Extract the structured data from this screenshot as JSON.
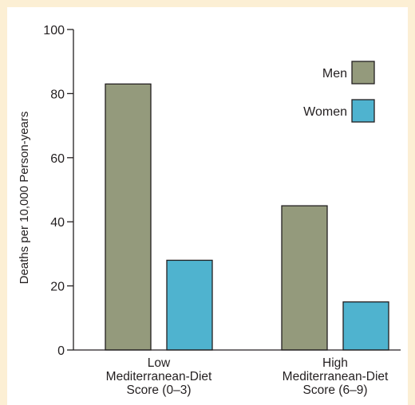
{
  "chart_data": {
    "type": "bar",
    "categories": [
      [
        "Low",
        "Mediterranean-Diet",
        "Score (0–3)"
      ],
      [
        "High",
        "Mediterranean-Diet",
        "Score (6–9)"
      ]
    ],
    "series": [
      {
        "name": "Men",
        "values": [
          83,
          45
        ],
        "color": "#949a7c"
      },
      {
        "name": "Women",
        "values": [
          28,
          15
        ],
        "color": "#4fb3cf"
      }
    ],
    "ylabel": "Deaths per 10,000 Person-years",
    "ylim": [
      0,
      100
    ],
    "yticks": [
      0,
      20,
      40,
      60,
      80,
      100
    ],
    "grid": false,
    "legend_position": "top-right"
  },
  "colors": {
    "page_background": "#fcefd4",
    "plot_background": "#ffffff",
    "axis": "#231f20"
  }
}
